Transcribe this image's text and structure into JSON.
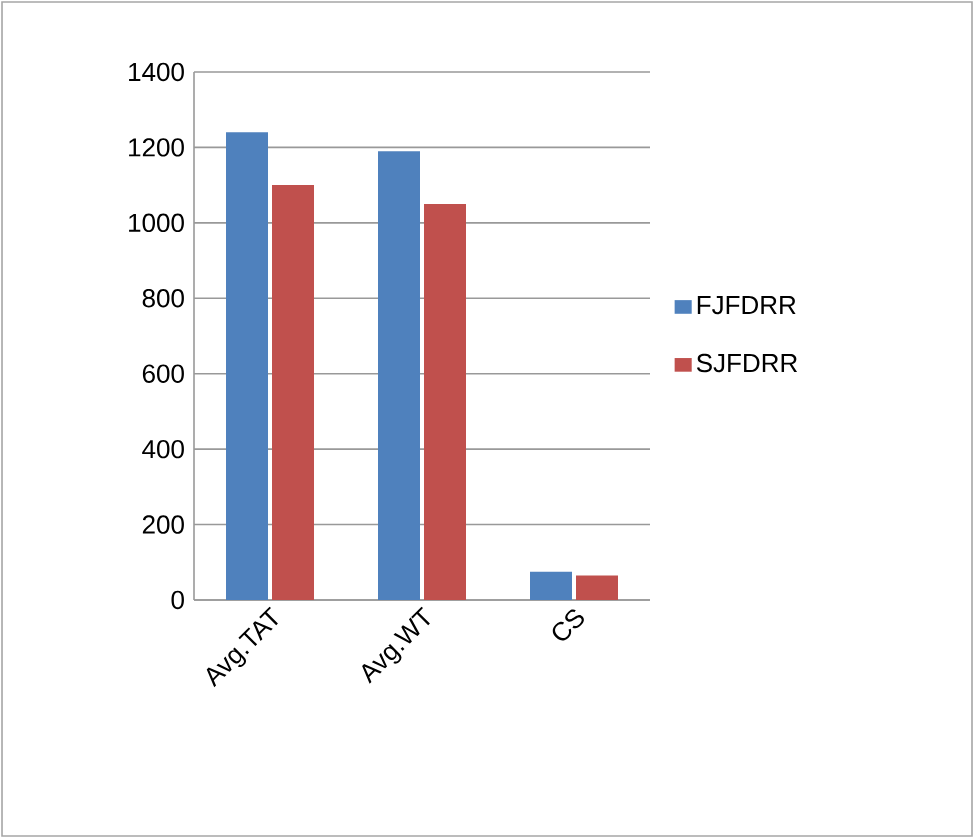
{
  "chart_data": {
    "type": "bar",
    "categories": [
      "Avg.TAT",
      "Avg.WT",
      "CS"
    ],
    "series": [
      {
        "name": "FJFDRR",
        "color": "#4f81bd",
        "values": [
          1240,
          1190,
          75
        ]
      },
      {
        "name": "SJFDRR",
        "color": "#c0504d",
        "values": [
          1100,
          1050,
          65
        ]
      }
    ],
    "ylim": [
      0,
      1400
    ],
    "yticks": [
      0,
      200,
      400,
      600,
      800,
      1000,
      1200,
      1400
    ],
    "grid": "y",
    "legend": "right"
  }
}
